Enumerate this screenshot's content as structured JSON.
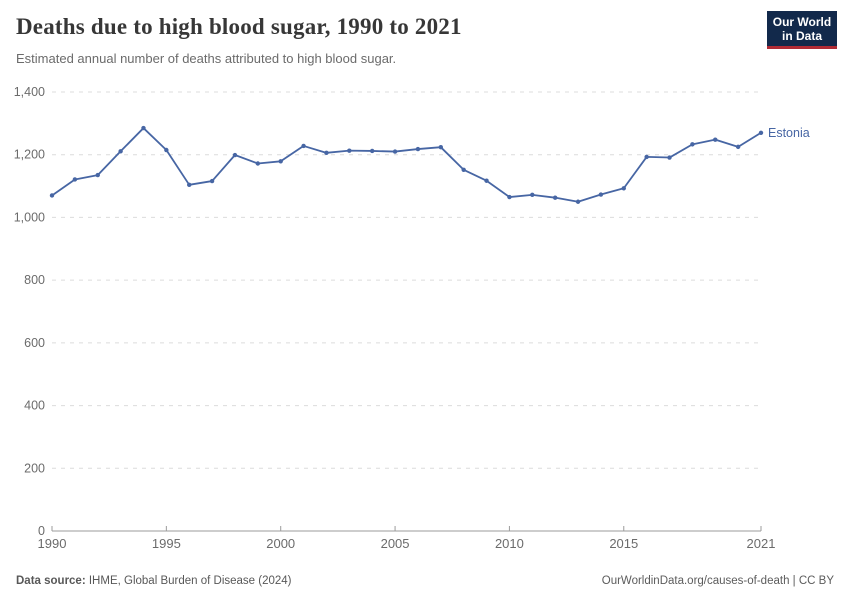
{
  "header": {
    "title": "Deaths due to high blood sugar, 1990 to 2021",
    "subtitle": "Estimated annual number of deaths attributed to high blood sugar.",
    "logo": {
      "line1": "Our World",
      "line2": "in Data"
    }
  },
  "chart_data": {
    "type": "line",
    "title": "Deaths due to high blood sugar, 1990 to 2021",
    "subtitle": "Estimated annual number of deaths attributed to high blood sugar.",
    "xlabel": "",
    "ylabel": "",
    "x": [
      1990,
      1991,
      1992,
      1993,
      1994,
      1995,
      1996,
      1997,
      1998,
      1999,
      2000,
      2001,
      2002,
      2003,
      2004,
      2005,
      2006,
      2007,
      2008,
      2009,
      2010,
      2011,
      2012,
      2013,
      2014,
      2015,
      2016,
      2017,
      2018,
      2019,
      2020,
      2021
    ],
    "series": [
      {
        "name": "Estonia",
        "color": "#4766a4",
        "values": [
          1070,
          1121,
          1135,
          1211,
          1285,
          1215,
          1104,
          1116,
          1199,
          1172,
          1179,
          1228,
          1206,
          1213,
          1212,
          1210,
          1218,
          1224,
          1152,
          1117,
          1065,
          1072,
          1063,
          1050,
          1073,
          1093,
          1193,
          1191,
          1233,
          1248,
          1225,
          1270
        ]
      }
    ],
    "ylim": [
      0,
      1400
    ],
    "xlim": [
      1990,
      2021
    ],
    "yticks": [
      {
        "value": 0,
        "label": "0"
      },
      {
        "value": 200,
        "label": "200"
      },
      {
        "value": 400,
        "label": "400"
      },
      {
        "value": 600,
        "label": "600"
      },
      {
        "value": 800,
        "label": "800"
      },
      {
        "value": 1000,
        "label": "1,000"
      },
      {
        "value": 1200,
        "label": "1,200"
      },
      {
        "value": 1400,
        "label": "1,400"
      }
    ],
    "xticks": [
      {
        "value": 1990,
        "label": "1990"
      },
      {
        "value": 1995,
        "label": "1995"
      },
      {
        "value": 2000,
        "label": "2000"
      },
      {
        "value": 2005,
        "label": "2005"
      },
      {
        "value": 2010,
        "label": "2010"
      },
      {
        "value": 2015,
        "label": "2015"
      },
      {
        "value": 2021,
        "label": "2021"
      }
    ],
    "grid": "horizontal-dashed",
    "legend": "end-of-line-label"
  },
  "footer": {
    "source_label": "Data source:",
    "source_text": " IHME, Global Burden of Disease (2024)",
    "right_text": "OurWorldinData.org/causes-of-death | CC BY"
  },
  "colors": {
    "line": "#4766a4",
    "grid": "#dcdcdc",
    "axis": "#9b9b9b",
    "tick_text": "#6b6b6b",
    "logo_bg": "#12294b",
    "logo_accent": "#b02b35"
  }
}
